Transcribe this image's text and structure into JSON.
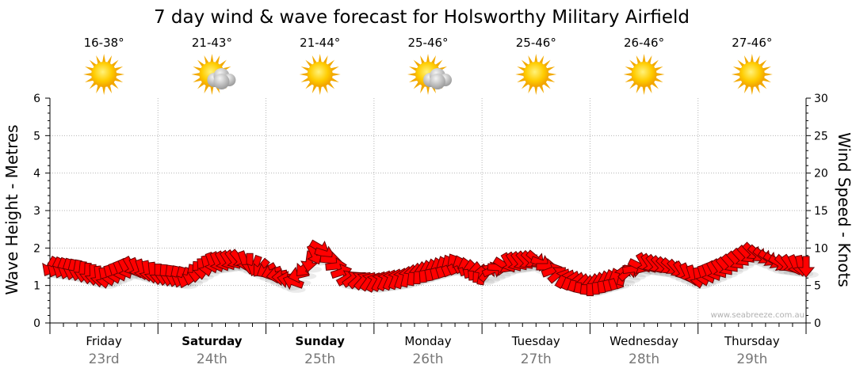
{
  "chart_data": {
    "type": "line",
    "title": "7 day wind & wave forecast for Holsworthy Military Airfield",
    "ylabel_left": "Wave Height - Metres",
    "ylabel_right": "Wind Speed - Knots",
    "ylim_left": [
      0,
      6
    ],
    "ylim_right": [
      0,
      30
    ],
    "yticks_left": [
      "0",
      "1",
      "2",
      "3",
      "4",
      "5",
      "6"
    ],
    "yticks_right": [
      "0",
      "5",
      "10",
      "15",
      "20",
      "25",
      "30"
    ],
    "grid": true,
    "watermark": "www.seabreeze.com.au",
    "days": [
      {
        "name": "Friday",
        "date": "23rd",
        "temp": "16-38°",
        "weather": "sunny",
        "bold": false
      },
      {
        "name": "Saturday",
        "date": "24th",
        "temp": "21-43°",
        "weather": "sunny-partly-cloudy",
        "bold": true
      },
      {
        "name": "Sunday",
        "date": "25th",
        "temp": "21-44°",
        "weather": "sunny",
        "bold": true
      },
      {
        "name": "Monday",
        "date": "26th",
        "temp": "25-46°",
        "weather": "sunny-partly-cloudy",
        "bold": false
      },
      {
        "name": "Tuesday",
        "date": "27th",
        "temp": "25-46°",
        "weather": "sunny",
        "bold": false
      },
      {
        "name": "Wednesday",
        "date": "28th",
        "temp": "26-46°",
        "weather": "sunny",
        "bold": false
      },
      {
        "name": "Thursday",
        "date": "29th",
        "temp": "27-46°",
        "weather": "sunny",
        "bold": false
      }
    ],
    "series": [
      {
        "name": "Wind Speed (knots)",
        "color": "#ff0000",
        "unit": "knots",
        "x_days": [
          0.0,
          0.25,
          0.5,
          0.75,
          1.0,
          1.25,
          1.5,
          1.75,
          2.0,
          2.25,
          2.5,
          2.75,
          3.0,
          3.25,
          3.5,
          3.75,
          4.0,
          4.25,
          4.5,
          4.75,
          5.0,
          5.25,
          5.5,
          5.75,
          6.0,
          6.25,
          6.5,
          6.75,
          7.0
        ],
        "values": [
          7.5,
          7,
          6,
          7.5,
          6.5,
          6,
          8,
          8.5,
          7,
          5.5,
          10,
          6,
          5.5,
          6,
          7,
          8,
          6.5,
          8,
          8.5,
          6,
          5,
          6,
          8,
          7.5,
          6,
          7.5,
          9.5,
          8,
          7.5
        ],
        "directions_deg": [
          120,
          100,
          80,
          60,
          90,
          110,
          70,
          50,
          150,
          200,
          30,
          330,
          300,
          290,
          260,
          240,
          280,
          60,
          40,
          300,
          270,
          250,
          60,
          40,
          80,
          50,
          45,
          30,
          90
        ]
      }
    ]
  }
}
